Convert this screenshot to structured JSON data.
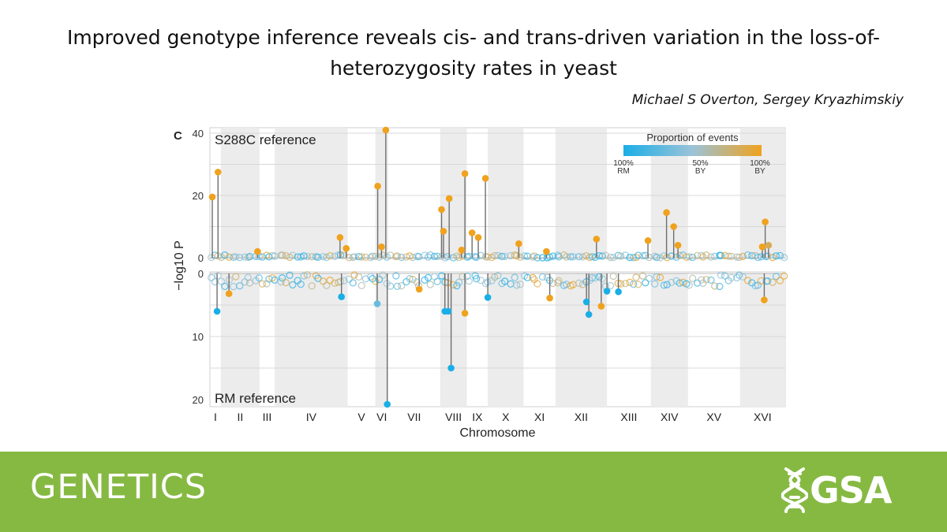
{
  "header": {
    "title_line1": "Improved genotype inference reveals cis- and trans-driven variation in the loss-of-",
    "title_line2": "heterozygosity rates in yeast",
    "authors": "Michael S Overton, Sergey Kryazhimskiy"
  },
  "footer": {
    "journal": "GENETICS",
    "society_logo": "GSA"
  },
  "colors": {
    "rm": "#1aaee6",
    "mid": "#9bc3d8",
    "by": "#f0a21e",
    "shade": "#ececec",
    "footer_bg": "#86b942"
  },
  "chart_data": {
    "type": "scatter",
    "panel_label": "C",
    "top_label": "S288C reference",
    "bottom_label": "RM reference",
    "xlabel": "Chromosome",
    "ylabel": "−log10 P",
    "y_top_ticks": [
      "0",
      "20",
      "40"
    ],
    "y_bottom_ticks": [
      "0",
      "10",
      "20"
    ],
    "ylim_top": [
      0,
      40
    ],
    "ylim_bottom": [
      0,
      20
    ],
    "legend": {
      "title": "Proportion of events",
      "placement": "top-right",
      "ticks": [
        {
          "l1": "100%",
          "l2": "RM"
        },
        {
          "l1": "50%",
          "l2": "BY"
        },
        {
          "l1": "100%",
          "l2": "BY"
        }
      ]
    },
    "chromosomes": [
      {
        "name": "I",
        "start": 0,
        "end": 0.23,
        "shaded": false
      },
      {
        "name": "II",
        "start": 0.23,
        "end": 1.04,
        "shaded": true
      },
      {
        "name": "III",
        "start": 1.04,
        "end": 1.36,
        "shaded": false
      },
      {
        "name": "IV",
        "start": 1.36,
        "end": 2.89,
        "shaded": true
      },
      {
        "name": "V",
        "start": 2.89,
        "end": 3.47,
        "shaded": false
      },
      {
        "name": "VI",
        "start": 3.47,
        "end": 3.74,
        "shaded": true
      },
      {
        "name": "VII",
        "start": 3.74,
        "end": 4.83,
        "shaded": false
      },
      {
        "name": "VIII",
        "start": 4.83,
        "end": 5.39,
        "shaded": true
      },
      {
        "name": "IX",
        "start": 5.39,
        "end": 5.83,
        "shaded": false
      },
      {
        "name": "X",
        "start": 5.83,
        "end": 6.58,
        "shaded": true
      },
      {
        "name": "XI",
        "start": 6.58,
        "end": 7.25,
        "shaded": false
      },
      {
        "name": "XII",
        "start": 7.25,
        "end": 8.33,
        "shaded": true
      },
      {
        "name": "XIII",
        "start": 8.33,
        "end": 9.25,
        "shaded": false
      },
      {
        "name": "XIV",
        "start": 9.25,
        "end": 10.03,
        "shaded": true
      },
      {
        "name": "XV",
        "start": 10.03,
        "end": 11.12,
        "shaded": false
      },
      {
        "name": "XVI",
        "start": 11.12,
        "end": 12.07,
        "shaded": true
      }
    ],
    "top_peaks": [
      {
        "x": 0.05,
        "y": 19.5,
        "prop": 1.0
      },
      {
        "x": 0.17,
        "y": 27.5,
        "prop": 1.0
      },
      {
        "x": 1.0,
        "y": 2.0,
        "prop": 1.0
      },
      {
        "x": 2.73,
        "y": 6.5,
        "prop": 1.0
      },
      {
        "x": 2.86,
        "y": 3.0,
        "prop": 1.0
      },
      {
        "x": 3.52,
        "y": 23.0,
        "prop": 1.0
      },
      {
        "x": 3.6,
        "y": 3.5,
        "prop": 1.0
      },
      {
        "x": 3.69,
        "y": 41.0,
        "prop": 1.0
      },
      {
        "x": 4.86,
        "y": 15.5,
        "prop": 1.0
      },
      {
        "x": 4.9,
        "y": 8.5,
        "prop": 1.0
      },
      {
        "x": 5.02,
        "y": 19.0,
        "prop": 1.0
      },
      {
        "x": 5.28,
        "y": 2.5,
        "prop": 1.0
      },
      {
        "x": 5.35,
        "y": 27.0,
        "prop": 1.0
      },
      {
        "x": 5.5,
        "y": 8.0,
        "prop": 1.0
      },
      {
        "x": 5.63,
        "y": 6.5,
        "prop": 1.0
      },
      {
        "x": 5.78,
        "y": 25.5,
        "prop": 1.0
      },
      {
        "x": 6.48,
        "y": 4.5,
        "prop": 1.0
      },
      {
        "x": 7.06,
        "y": 2.0,
        "prop": 1.0
      },
      {
        "x": 8.11,
        "y": 6.0,
        "prop": 1.0
      },
      {
        "x": 9.19,
        "y": 5.5,
        "prop": 1.0
      },
      {
        "x": 9.58,
        "y": 14.5,
        "prop": 1.0
      },
      {
        "x": 9.73,
        "y": 10.0,
        "prop": 1.0
      },
      {
        "x": 9.82,
        "y": 4.0,
        "prop": 1.0
      },
      {
        "x": 11.59,
        "y": 3.5,
        "prop": 1.0
      },
      {
        "x": 11.65,
        "y": 11.5,
        "prop": 1.0
      },
      {
        "x": 11.72,
        "y": 4.0,
        "prop": 0.85
      }
    ],
    "bottom_peaks": [
      {
        "x": 0.15,
        "y": 6.0,
        "prop": 0.0
      },
      {
        "x": 0.4,
        "y": 3.2,
        "prop": 1.0
      },
      {
        "x": 2.76,
        "y": 3.7,
        "prop": 0.0
      },
      {
        "x": 3.51,
        "y": 4.8,
        "prop": 0.3
      },
      {
        "x": 3.72,
        "y": 21.0,
        "prop": 0.0
      },
      {
        "x": 4.39,
        "y": 2.5,
        "prop": 1.0
      },
      {
        "x": 4.93,
        "y": 6.0,
        "prop": 0.0
      },
      {
        "x": 5.0,
        "y": 6.0,
        "prop": 0.0
      },
      {
        "x": 5.06,
        "y": 15.0,
        "prop": 0.0
      },
      {
        "x": 5.35,
        "y": 6.3,
        "prop": 1.0
      },
      {
        "x": 5.83,
        "y": 3.8,
        "prop": 0.0
      },
      {
        "x": 7.13,
        "y": 3.9,
        "prop": 1.0
      },
      {
        "x": 7.9,
        "y": 4.5,
        "prop": 0.0
      },
      {
        "x": 7.95,
        "y": 6.5,
        "prop": 0.0
      },
      {
        "x": 8.21,
        "y": 5.2,
        "prop": 1.0
      },
      {
        "x": 8.33,
        "y": 2.8,
        "prop": 0.0
      },
      {
        "x": 8.57,
        "y": 2.9,
        "prop": 0.0
      },
      {
        "x": 11.63,
        "y": 4.2,
        "prop": 1.0
      }
    ]
  }
}
